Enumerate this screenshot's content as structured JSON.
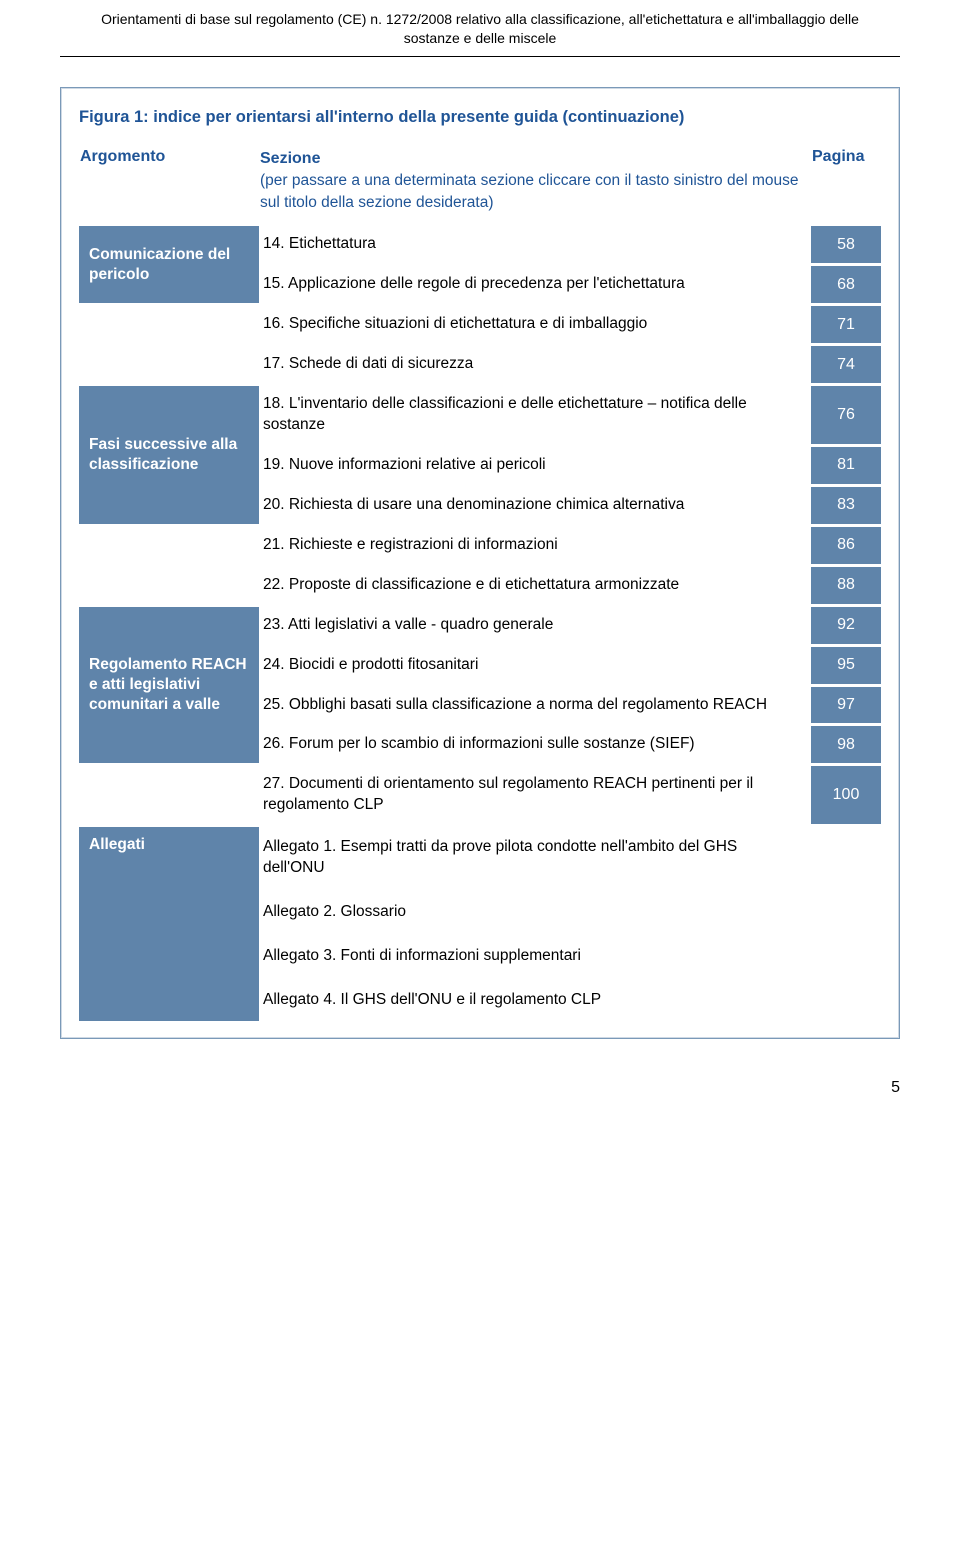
{
  "header": {
    "line1": "Orientamenti di base sul regolamento (CE) n. 1272/2008 relativo alla classificazione, all'etichettatura e all'imballaggio delle",
    "line2": "sostanze e delle miscele"
  },
  "figure_title": "Figura 1: indice per orientarsi all'interno della presente guida (continuazione)",
  "columns": {
    "argomento": "Argomento",
    "sezione_title": "Sezione",
    "sezione_sub": "(per passare a una determinata sezione cliccare con il tasto sinistro del mouse sul titolo della sezione desiderata)",
    "pagina": "Pagina"
  },
  "groups": {
    "comunicazione": "Comunicazione del pericolo",
    "fasi": "Fasi successive alla classificazione",
    "reach": "Regolamento REACH e atti legislativi comunitari a valle",
    "allegati": "Allegati"
  },
  "rows": {
    "r14": {
      "text": "14.  Etichettatura",
      "page": "58"
    },
    "r15": {
      "text": "15.  Applicazione delle regole di precedenza per l'etichettatura",
      "page": "68"
    },
    "r16": {
      "text": "16.  Specifiche situazioni di etichettatura e di imballaggio",
      "page": "71"
    },
    "r17": {
      "text": "17.  Schede di dati di sicurezza",
      "page": "74"
    },
    "r18": {
      "text": "18.  L'inventario delle classificazioni e delle etichettature – notifica delle sostanze",
      "page": "76"
    },
    "r19": {
      "text": "19.  Nuove informazioni relative ai pericoli",
      "page": "81"
    },
    "r20": {
      "text": "20.  Richiesta di usare una denominazione chimica alternativa",
      "page": "83"
    },
    "r21": {
      "text": "21.  Richieste e registrazioni di informazioni",
      "page": "86"
    },
    "r22": {
      "text": "22.  Proposte di classificazione e di etichettatura armonizzate",
      "page": "88"
    },
    "r23": {
      "text": "23.  Atti legislativi a valle - quadro generale",
      "page": "92"
    },
    "r24": {
      "text": "24.  Biocidi e prodotti fitosanitari",
      "page": "95"
    },
    "r25": {
      "text": "25.  Obblighi basati sulla classificazione a norma del regolamento REACH",
      "page": "97"
    },
    "r26": {
      "text": "26.  Forum per lo scambio di informazioni sulle sostanze (SIEF)",
      "page": "98"
    },
    "r27": {
      "text": "27.  Documenti di orientamento sul regolamento REACH pertinenti per il regolamento CLP",
      "page": "100"
    }
  },
  "allegati": {
    "a1": "Allegato 1. Esempi tratti da prove pilota condotte nell'ambito del GHS dell'ONU",
    "a2": "Allegato 2. Glossario",
    "a3": "Allegato 3. Fonti di informazioni supplementari",
    "a4": "Allegato 4. Il GHS dell'ONU e il regolamento CLP"
  },
  "footer_page": "5",
  "colors": {
    "heading_blue": "#1f5496",
    "cell_blue": "#5f84aa",
    "border_blue": "#7a99b8"
  }
}
